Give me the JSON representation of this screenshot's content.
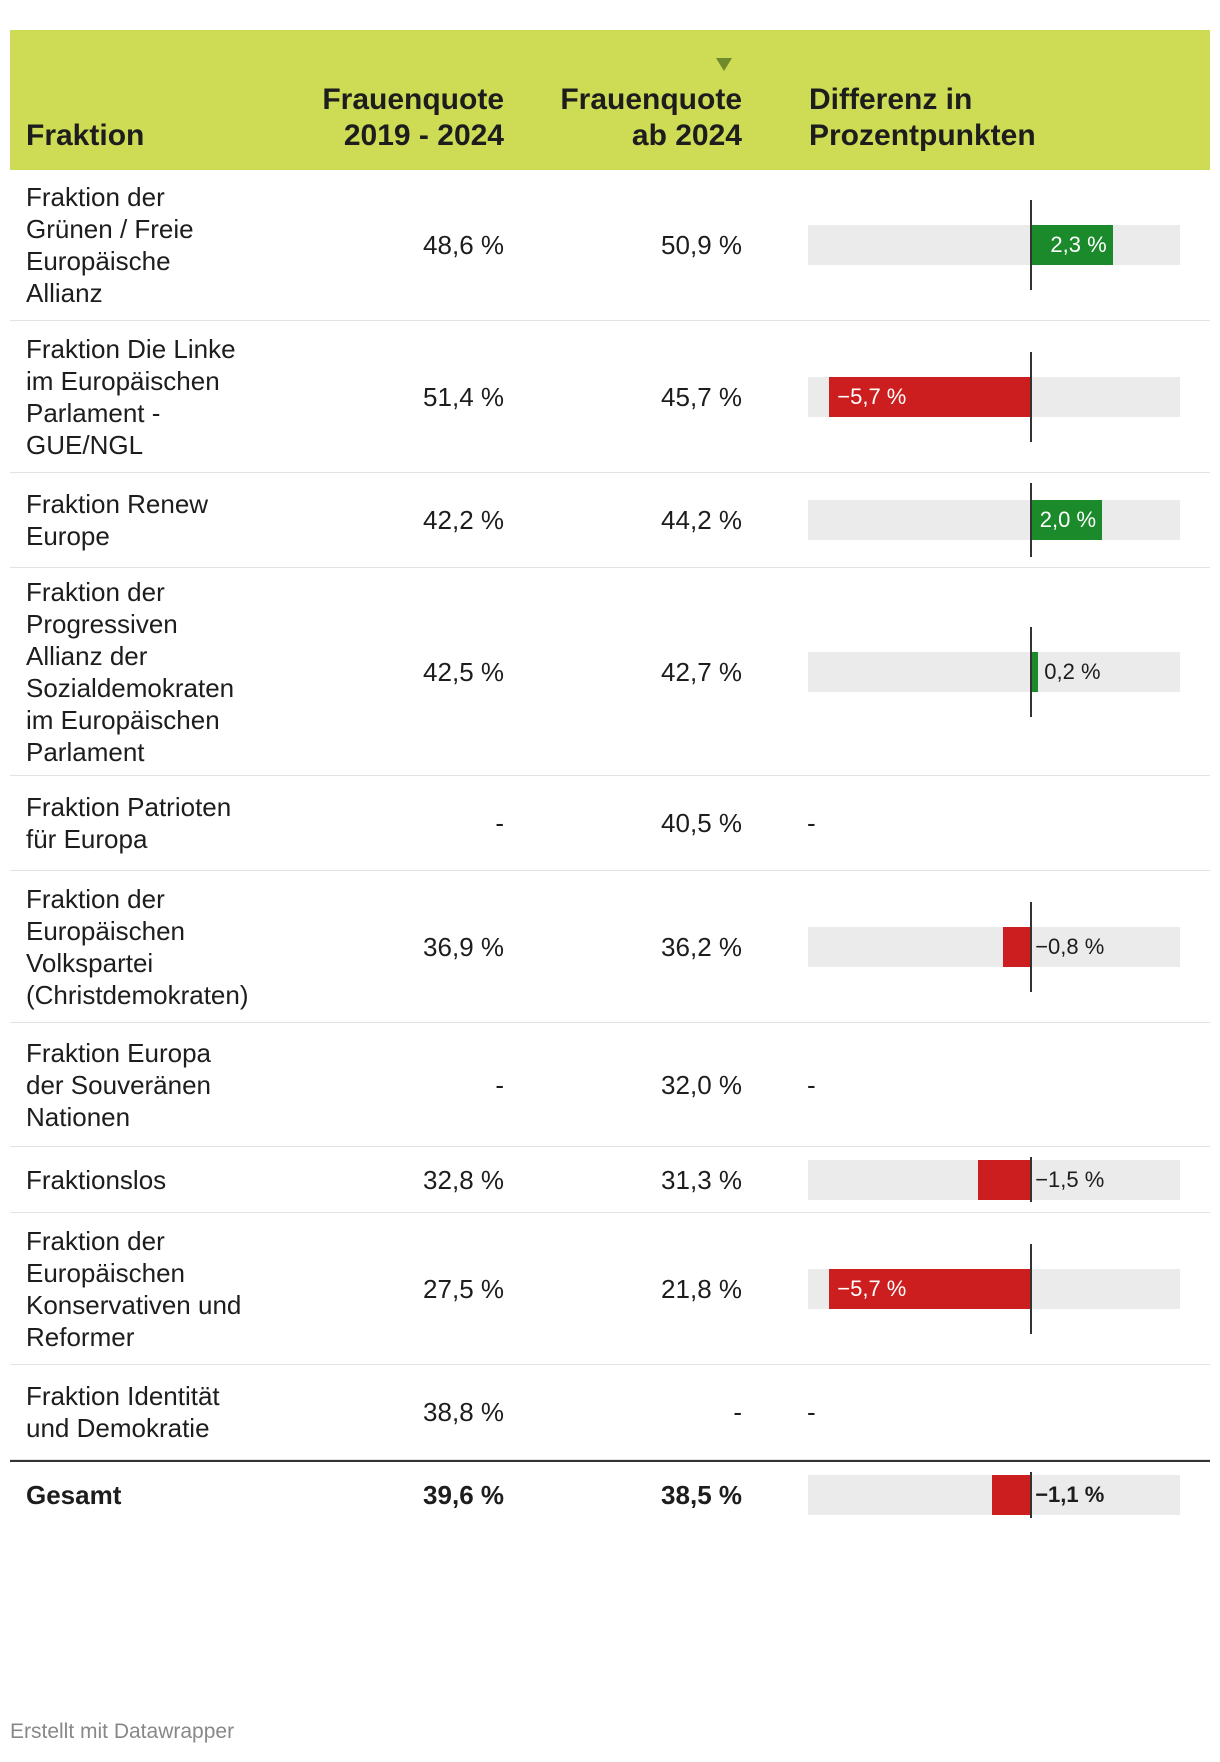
{
  "header": {
    "col_fraktion": "Fraktion",
    "col_q1": "Frauenquote\n2019 - 2024",
    "col_q2": "Frauenquote\nab 2024",
    "col_diff": "Differenz in\nProzentpunkten"
  },
  "colors": {
    "header_bg": "#cddb55",
    "positive": "#1a8a2a",
    "negative": "#cc1e1e",
    "track": "#ebebeb"
  },
  "chart_data": {
    "type": "table",
    "title": "",
    "bar_column": "Differenz in Prozentpunkten",
    "diff_range": [
      -6.3,
      4.2
    ],
    "rows": [
      {
        "name": "Fraktion der\nGrünen / Freie\nEuropäische\nAllianz",
        "q1": "48,6 %",
        "q2": "50,9 %",
        "diff": 2.3,
        "diff_label": "2,3 %"
      },
      {
        "name": "Fraktion Die Linke\nim Europäischen\nParlament -\nGUE/NGL",
        "q1": "51,4 %",
        "q2": "45,7 %",
        "diff": -5.7,
        "diff_label": "−5,7 %"
      },
      {
        "name": "Fraktion Renew\nEurope",
        "q1": "42,2 %",
        "q2": "44,2 %",
        "diff": 2.0,
        "diff_label": "2,0 %"
      },
      {
        "name": "Fraktion der\nProgressiven\nAllianz der\nSozialdemokraten\nim Europäischen\nParlament",
        "q1": "42,5 %",
        "q2": "42,7 %",
        "diff": 0.2,
        "diff_label": "0,2 %"
      },
      {
        "name": "Fraktion Patrioten\nfür Europa",
        "q1": "-",
        "q2": "40,5 %",
        "diff": null,
        "diff_label": "-"
      },
      {
        "name": "Fraktion der\nEuropäischen\nVolkspartei\n(Christdemokraten)",
        "q1": "36,9 %",
        "q2": "36,2 %",
        "diff": -0.8,
        "diff_label": "−0,8 %"
      },
      {
        "name": "Fraktion Europa\nder Souveränen\nNationen",
        "q1": "-",
        "q2": "32,0 %",
        "diff": null,
        "diff_label": "-"
      },
      {
        "name": "Fraktionslos",
        "q1": "32,8 %",
        "q2": "31,3 %",
        "diff": -1.5,
        "diff_label": "−1,5 %"
      },
      {
        "name": "Fraktion der\nEuropäischen\nKonservativen und\nReformer",
        "q1": "27,5 %",
        "q2": "21,8 %",
        "diff": -5.7,
        "diff_label": "−5,7 %"
      },
      {
        "name": "Fraktion Identität\nund Demokratie",
        "q1": "38,8 %",
        "q2": "-",
        "diff": null,
        "diff_label": "-"
      },
      {
        "name": "Gesamt",
        "q1": "39,6 %",
        "q2": "38,5 %",
        "diff": -1.1,
        "diff_label": "−1,1 %",
        "total": true
      }
    ]
  },
  "footer": {
    "credit": "Erstellt mit Datawrapper"
  }
}
